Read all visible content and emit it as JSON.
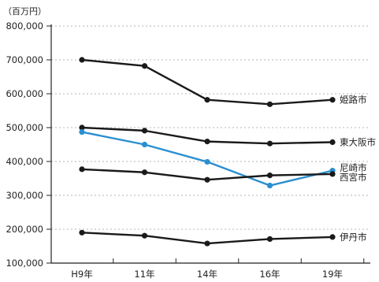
{
  "chart_data": {
    "type": "line",
    "unit_label": "（百万円）",
    "categories": [
      "H9年",
      "11年",
      "14年",
      "16年",
      "19年"
    ],
    "ylim": [
      100000,
      800000
    ],
    "yticks": [
      100000,
      200000,
      300000,
      400000,
      500000,
      600000,
      700000,
      800000
    ],
    "ytick_labels": [
      "100,000",
      "200,000",
      "300,000",
      "400,000",
      "500,000",
      "600,000",
      "700,000",
      "800,000"
    ],
    "grid": true,
    "series": [
      {
        "name": "姫路市",
        "color": "#1a1a1a",
        "values": [
          700000,
          682000,
          582000,
          569000,
          582000
        ]
      },
      {
        "name": "東大阪市",
        "color": "#1a1a1a",
        "values": [
          500000,
          491000,
          459000,
          453000,
          457000
        ]
      },
      {
        "name": "尼崎市",
        "color": "#2a8fd0",
        "values": [
          487000,
          450000,
          399000,
          329000,
          373000
        ]
      },
      {
        "name": "西宮市",
        "color": "#1a1a1a",
        "values": [
          377000,
          368000,
          346000,
          359000,
          363000
        ]
      },
      {
        "name": "伊丹市",
        "color": "#1a1a1a",
        "values": [
          190000,
          181000,
          158000,
          171000,
          177000
        ]
      }
    ]
  }
}
